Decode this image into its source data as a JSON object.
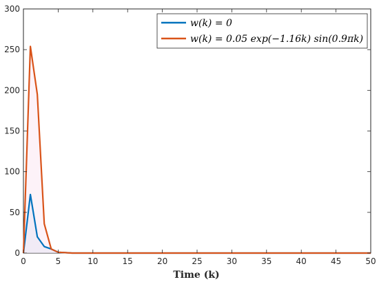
{
  "chart_data": {
    "type": "line",
    "title": "",
    "xlabel": "Time (k)",
    "ylabel": "",
    "xlim": [
      0,
      50
    ],
    "ylim": [
      0,
      300
    ],
    "xticks": [
      0,
      5,
      10,
      15,
      20,
      25,
      30,
      35,
      40,
      45,
      50
    ],
    "yticks": [
      0,
      50,
      100,
      150,
      200,
      250,
      300
    ],
    "grid": false,
    "legend_position": "top-right",
    "series": [
      {
        "name": "w(k) = 0",
        "color": "#0072BD",
        "x": [
          0,
          1,
          2,
          3,
          4,
          5,
          6,
          7,
          8,
          9,
          10,
          15,
          20,
          25,
          30,
          35,
          40,
          45,
          50
        ],
        "y": [
          0,
          72,
          20,
          8,
          5,
          1,
          0.5,
          0,
          0,
          0,
          0,
          0,
          0,
          0,
          0,
          0,
          0,
          0,
          0
        ]
      },
      {
        "name": "w(k) = 0.05 exp(−1.16k) sin(0.9πk)",
        "color": "#D95319",
        "x": [
          0,
          1,
          2,
          3,
          4,
          5,
          6,
          7,
          8,
          9,
          10,
          15,
          20,
          25,
          30,
          35,
          40,
          45,
          50
        ],
        "y": [
          0,
          254,
          195,
          36,
          5,
          1,
          0.5,
          0,
          0,
          0,
          0,
          0,
          0,
          0,
          0,
          0,
          0,
          0,
          0
        ]
      }
    ]
  }
}
